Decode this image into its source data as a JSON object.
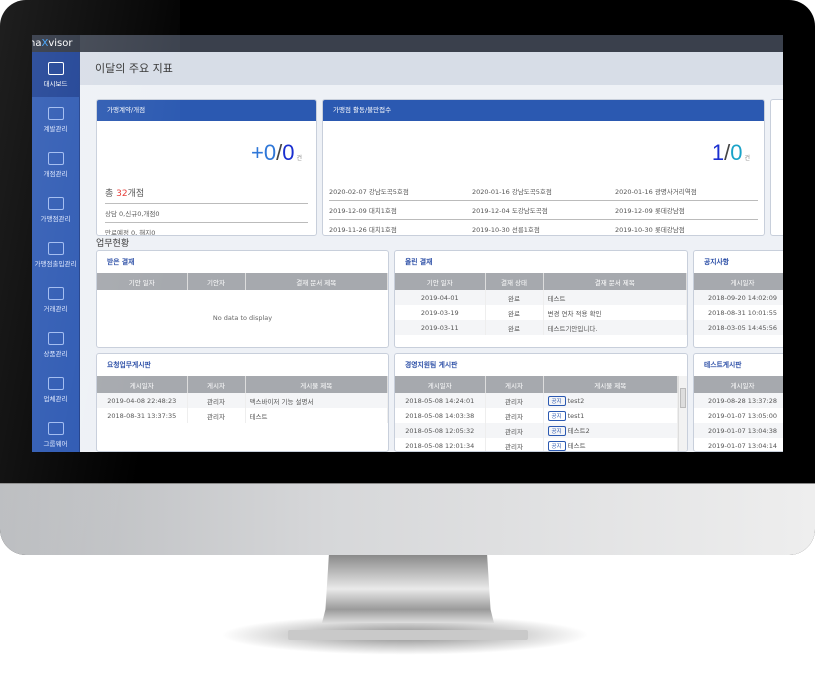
{
  "app": {
    "logo_prefix": "na",
    "logo_x": "X",
    "logo_suffix": "visor",
    "page_title": "이달의 주요 지표",
    "section_title": "업무현황"
  },
  "sidebar": {
    "items": [
      {
        "label": "대시보드",
        "icon": "monitor-icon",
        "active": true
      },
      {
        "label": "계발관리",
        "icon": "inbox-icon"
      },
      {
        "label": "개점관리",
        "icon": "document-search-icon"
      },
      {
        "label": "가맹점관리",
        "icon": "document-list-icon"
      },
      {
        "label": "가맹점출입관리",
        "icon": "clipboard-check-icon"
      },
      {
        "label": "거래관리",
        "icon": "exchange-arrows-icon"
      },
      {
        "label": "상품관리",
        "icon": "barcode-icon"
      },
      {
        "label": "업체관리",
        "icon": "network-icon"
      },
      {
        "label": "그룹웨어",
        "icon": "mail-document-icon"
      }
    ]
  },
  "card_contract": {
    "title": "가맹계약/개점",
    "value_plus": "+0",
    "slash": "/",
    "value_b": "0",
    "unit": "건",
    "total_prefix": "총 ",
    "total_count": "32",
    "total_suffix": "개점",
    "line1": "상담 0,신규0,개점0",
    "line2": "만료예정 0, 해지0"
  },
  "card_activity": {
    "title": "가맹점 활동/불만접수",
    "value_a": "1",
    "slash": "/",
    "value_b": "0",
    "unit": "건",
    "entries": [
      "2020-02-07 강남도곡5호점",
      "2020-01-16 강남도곡5호점",
      "2020-01-16 광명사거리역점",
      "2019-12-09 대치1호점",
      "2019-12-04 도강남도곡점",
      "2019-12-09 롯데강남점",
      "2019-11-26 대치1호점",
      "2019-10-30 선릉1호점",
      "2019-10-30 롯데강남점"
    ]
  },
  "panels": [
    {
      "title": "받은 결재",
      "columns": [
        "기안 일자",
        "기안자",
        "결재 문서 제목"
      ],
      "rows": [],
      "empty": "No data to display"
    },
    {
      "title": "올린 결재",
      "columns": [
        "기안 일자",
        "결재 상태",
        "결재 문서 제목"
      ],
      "rows": [
        [
          "2019-04-01",
          "완료",
          "테스트"
        ],
        [
          "2019-03-19",
          "완료",
          "변경 연차 적용 확인"
        ],
        [
          "2019-03-11",
          "완료",
          "테스트기안입니다."
        ]
      ]
    },
    {
      "title": "공지사항",
      "columns": [
        "게시일자"
      ],
      "rows": [
        [
          "2018-09-20 14:02:09"
        ],
        [
          "2018-08-31 10:01:55"
        ],
        [
          "2018-03-05 14:45:56"
        ]
      ]
    },
    {
      "title": "요청업무게시판",
      "columns": [
        "게시일자",
        "게시자",
        "게시물 제목"
      ],
      "rows": [
        [
          "2019-04-08 22:48:23",
          "관리자",
          "맥스바이저 기능 설명서"
        ],
        [
          "2018-08-31 13:37:35",
          "관리자",
          "테스트"
        ]
      ]
    },
    {
      "title": "경영지원팀 게시판",
      "columns": [
        "게시일자",
        "게시자",
        "게시물 제목"
      ],
      "tag": "공지",
      "rows": [
        [
          "2018-05-08 14:24:01",
          "관리자",
          "test2"
        ],
        [
          "2018-05-08 14:03:38",
          "관리자",
          "test1"
        ],
        [
          "2018-05-08 12:05:32",
          "관리자",
          "테스트2"
        ],
        [
          "2018-05-08 12:01:34",
          "관리자",
          "테스트"
        ]
      ]
    },
    {
      "title": "테스트게시판",
      "columns": [
        "게시일자"
      ],
      "rows": [
        [
          "2019-08-28 13:37:28"
        ],
        [
          "2019-01-07 13:05:00"
        ],
        [
          "2019-01-07 13:04:38"
        ],
        [
          "2019-01-07 13:04:14"
        ]
      ]
    }
  ],
  "colors": {
    "brand_blue": "#2b59b1",
    "sidebar": "#2c58b2",
    "red": "#e53935",
    "cyan": "#1aa3c8"
  }
}
